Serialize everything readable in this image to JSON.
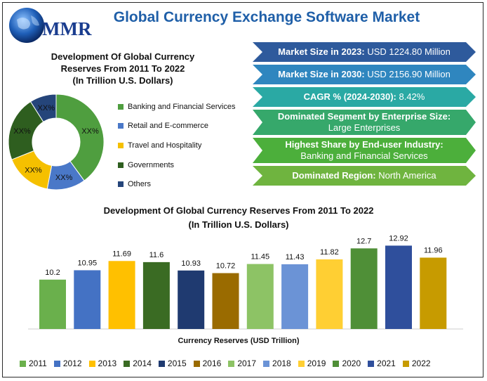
{
  "header": {
    "logo_text": "MMR",
    "title": "Global Currency Exchange Software Market"
  },
  "donut": {
    "title_line1": "Development Of Global Currency",
    "title_line2": "Reserves From 2011 To 2022",
    "title_line3": "(In Trillion U.S. Dollars)"
  },
  "stats": [
    {
      "label": "Market Size in 2023:",
      "value": " USD 1224.80 Million",
      "color": "#2e5a9c",
      "two_line": false
    },
    {
      "label": "Market Size in 2030:",
      "value": " USD 2156.90 Million",
      "color": "#2f86bf",
      "two_line": false
    },
    {
      "label": "CAGR % (2024-2030):",
      "value": " 8.42%",
      "color": "#2aa9a4",
      "two_line": false
    },
    {
      "label": "Dominated Segment by Enterprise Size:",
      "value": "Large Enterprises",
      "color": "#36a86b",
      "two_line": true
    },
    {
      "label": "Highest Share by End-user Industry:",
      "value": "Banking and Financial Services",
      "color": "#4caf3b",
      "two_line": true
    },
    {
      "label": "Dominated Region:",
      "value": " North America",
      "color": "#6fb43f",
      "two_line": false
    }
  ],
  "bar": {
    "title_line1": "Development Of Global Currency Reserves From 2011 To 2022",
    "title_line2": "(In Trillion U.S. Dollars)"
  },
  "chart_data": [
    {
      "type": "pie",
      "title": "Development Of Global Currency Reserves From 2011 To 2022 (In Trillion U.S. Dollars)",
      "categories": [
        "Banking and Financial Services",
        "Retail and E-commerce",
        "Travel and Hospitality",
        "Governments",
        "Others"
      ],
      "values": [
        40,
        13,
        16,
        22,
        9
      ],
      "data_labels": [
        "XX%",
        "XX%",
        "XX%",
        "XX%",
        "XX%"
      ],
      "colors": [
        "#4f9e3f",
        "#4a78c8",
        "#f5c000",
        "#2e5e1f",
        "#25457a"
      ],
      "legend": "right"
    },
    {
      "type": "bar",
      "title": "Development Of Global Currency Reserves From 2011 To 2022 (In Trillion U.S. Dollars)",
      "xlabel": "Currency Reserves (USD Trillion)",
      "categories": [
        "2011",
        "2012",
        "2013",
        "2014",
        "2015",
        "2016",
        "2017",
        "2018",
        "2019",
        "2020",
        "2021",
        "2022"
      ],
      "values": [
        10.2,
        10.95,
        11.69,
        11.6,
        10.93,
        10.72,
        11.45,
        11.43,
        11.82,
        12.7,
        12.92,
        11.96
      ],
      "colors": [
        "#6ab04c",
        "#4472c4",
        "#ffc000",
        "#3a6b23",
        "#1f3a70",
        "#9a6b00",
        "#8dc365",
        "#6b93d6",
        "#ffcf33",
        "#4f8f37",
        "#2f4f9c",
        "#c79b00"
      ],
      "legend": "bottom"
    }
  ]
}
